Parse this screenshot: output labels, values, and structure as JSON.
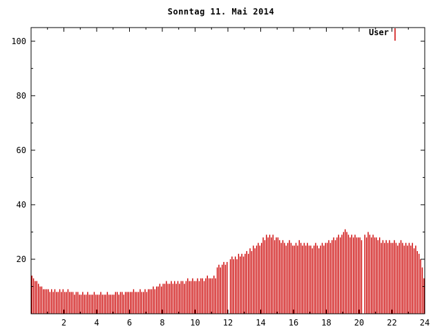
{
  "title": "Sonntag 11. Mai 2014",
  "legend": {
    "label": "User",
    "color": "#cc0000"
  },
  "chart_data": {
    "type": "bar",
    "style": "impulses",
    "title": "Sonntag 11. Mai 2014",
    "series_name": "User",
    "color": "#cc0000",
    "xlabel": "",
    "ylabel": "",
    "xlim": [
      0,
      24
    ],
    "ylim": [
      0,
      105
    ],
    "x_major_ticks": [
      2,
      4,
      6,
      8,
      10,
      12,
      14,
      16,
      18,
      20,
      22,
      24
    ],
    "x_minor_step": 1,
    "y_major_ticks": [
      20,
      40,
      60,
      80,
      100
    ],
    "y_minor_step": 10,
    "interval_minutes": 6,
    "grid": false,
    "legend_position": "top-right",
    "values": [
      14,
      13,
      12,
      12,
      11,
      10,
      10,
      9,
      9,
      9,
      9,
      8,
      9,
      8,
      9,
      8,
      8,
      9,
      8,
      9,
      8,
      8,
      9,
      8,
      8,
      8,
      7,
      8,
      8,
      7,
      7,
      8,
      7,
      7,
      8,
      7,
      7,
      7,
      8,
      7,
      7,
      7,
      8,
      7,
      7,
      7,
      8,
      7,
      7,
      7,
      7,
      8,
      8,
      7,
      8,
      8,
      7,
      8,
      8,
      8,
      8,
      8,
      9,
      8,
      8,
      8,
      9,
      8,
      8,
      9,
      8,
      9,
      9,
      9,
      10,
      9,
      10,
      10,
      11,
      10,
      11,
      11,
      12,
      11,
      11,
      12,
      11,
      12,
      11,
      12,
      11,
      12,
      12,
      11,
      12,
      13,
      12,
      12,
      13,
      12,
      12,
      13,
      12,
      13,
      13,
      12,
      13,
      14,
      13,
      13,
      13,
      14,
      13,
      17,
      18,
      17,
      18,
      19,
      18,
      19,
      0,
      20,
      21,
      20,
      21,
      20,
      22,
      21,
      22,
      21,
      22,
      23,
      22,
      24,
      23,
      25,
      24,
      25,
      26,
      25,
      26,
      28,
      27,
      29,
      28,
      29,
      28,
      29,
      27,
      28,
      28,
      27,
      26,
      27,
      26,
      25,
      26,
      27,
      26,
      25,
      25,
      26,
      25,
      27,
      26,
      25,
      26,
      25,
      26,
      25,
      25,
      24,
      25,
      26,
      25,
      24,
      25,
      26,
      25,
      26,
      26,
      27,
      26,
      27,
      28,
      27,
      28,
      29,
      28,
      29,
      30,
      31,
      30,
      29,
      28,
      29,
      28,
      29,
      28,
      28,
      28,
      27,
      0,
      29,
      28,
      30,
      29,
      28,
      29,
      28,
      28,
      27,
      28,
      26,
      27,
      26,
      27,
      26,
      27,
      26,
      26,
      27,
      26,
      25,
      26,
      27,
      26,
      25,
      26,
      25,
      26,
      25,
      26,
      24,
      25,
      23,
      22,
      20,
      17,
      13
    ]
  }
}
